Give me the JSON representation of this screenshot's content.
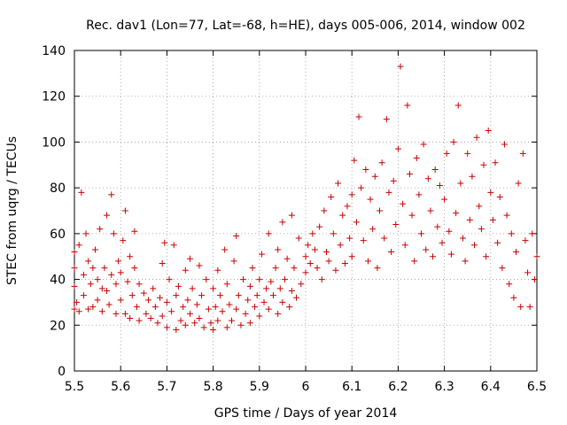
{
  "chart_data": {
    "type": "scatter",
    "title": "Rec. dav1 (Lon=77, Lat=-68, h=HE), days 005-006, 2014, window 002",
    "xlabel": "GPS time / Days of year 2014",
    "ylabel": "STEC from uqrg / TECUs",
    "xlim": [
      5.5,
      6.5
    ],
    "ylim": [
      0,
      140
    ],
    "x_ticks": [
      "5.5",
      "5.6",
      "5.7",
      "5.8",
      "5.9",
      "6",
      "6.1",
      "6.2",
      "6.3",
      "6.4",
      "6.5"
    ],
    "y_ticks": [
      "0",
      "20",
      "40",
      "60",
      "80",
      "100",
      "120",
      "140"
    ],
    "marker": "plus",
    "colors": {
      "points": "#cc0000",
      "axes": "#000000",
      "background": "#ffffff"
    },
    "series": [
      {
        "name": "STEC",
        "points": [
          [
            5.5,
            27
          ],
          [
            5.5,
            37
          ],
          [
            5.5,
            45
          ],
          [
            5.5,
            52
          ],
          [
            5.505,
            30
          ],
          [
            5.51,
            55
          ],
          [
            5.51,
            26
          ],
          [
            5.515,
            78
          ],
          [
            5.52,
            42
          ],
          [
            5.52,
            33
          ],
          [
            5.525,
            60
          ],
          [
            5.53,
            27
          ],
          [
            5.53,
            48
          ],
          [
            5.535,
            38
          ],
          [
            5.54,
            45
          ],
          [
            5.54,
            28
          ],
          [
            5.545,
            53
          ],
          [
            5.55,
            40
          ],
          [
            5.55,
            31
          ],
          [
            5.555,
            62
          ],
          [
            5.56,
            26
          ],
          [
            5.56,
            36
          ],
          [
            5.565,
            45
          ],
          [
            5.57,
            68
          ],
          [
            5.57,
            35
          ],
          [
            5.575,
            29
          ],
          [
            5.58,
            77
          ],
          [
            5.58,
            42
          ],
          [
            5.585,
            60
          ],
          [
            5.59,
            38
          ],
          [
            5.59,
            25
          ],
          [
            5.595,
            48
          ],
          [
            5.6,
            43
          ],
          [
            5.6,
            31
          ],
          [
            5.605,
            57
          ],
          [
            5.61,
            70
          ],
          [
            5.61,
            25
          ],
          [
            5.615,
            39
          ],
          [
            5.62,
            50
          ],
          [
            5.62,
            23
          ],
          [
            5.625,
            33
          ],
          [
            5.63,
            61
          ],
          [
            5.63,
            45
          ],
          [
            5.635,
            28
          ],
          [
            5.64,
            22
          ],
          [
            5.64,
            38
          ],
          [
            5.65,
            34
          ],
          [
            5.655,
            25
          ],
          [
            5.66,
            31
          ],
          [
            5.665,
            23
          ],
          [
            5.67,
            36
          ],
          [
            5.675,
            28
          ],
          [
            5.68,
            21
          ],
          [
            5.685,
            32
          ],
          [
            5.69,
            47
          ],
          [
            5.69,
            24
          ],
          [
            5.695,
            56
          ],
          [
            5.7,
            30
          ],
          [
            5.7,
            19
          ],
          [
            5.705,
            40
          ],
          [
            5.71,
            26
          ],
          [
            5.715,
            55
          ],
          [
            5.72,
            33
          ],
          [
            5.72,
            18
          ],
          [
            5.725,
            37
          ],
          [
            5.73,
            22
          ],
          [
            5.735,
            28
          ],
          [
            5.74,
            44
          ],
          [
            5.74,
            20
          ],
          [
            5.745,
            31
          ],
          [
            5.75,
            49
          ],
          [
            5.75,
            25
          ],
          [
            5.755,
            36
          ],
          [
            5.76,
            21
          ],
          [
            5.765,
            29
          ],
          [
            5.77,
            46
          ],
          [
            5.77,
            23
          ],
          [
            5.775,
            33
          ],
          [
            5.78,
            19
          ],
          [
            5.785,
            40
          ],
          [
            5.79,
            27
          ],
          [
            5.795,
            21
          ],
          [
            5.8,
            36
          ],
          [
            5.8,
            18
          ],
          [
            5.805,
            28
          ],
          [
            5.81,
            44
          ],
          [
            5.81,
            22
          ],
          [
            5.815,
            33
          ],
          [
            5.82,
            26
          ],
          [
            5.825,
            53
          ],
          [
            5.83,
            19
          ],
          [
            5.83,
            38
          ],
          [
            5.835,
            29
          ],
          [
            5.84,
            22
          ],
          [
            5.845,
            48
          ],
          [
            5.85,
            27
          ],
          [
            5.85,
            59
          ],
          [
            5.855,
            33
          ],
          [
            5.86,
            20
          ],
          [
            5.865,
            40
          ],
          [
            5.87,
            25
          ],
          [
            5.875,
            31
          ],
          [
            5.88,
            37
          ],
          [
            5.88,
            21
          ],
          [
            5.885,
            45
          ],
          [
            5.89,
            28
          ],
          [
            5.895,
            33
          ],
          [
            5.9,
            40
          ],
          [
            5.9,
            24
          ],
          [
            5.905,
            51
          ],
          [
            5.91,
            30
          ],
          [
            5.915,
            36
          ],
          [
            5.92,
            27
          ],
          [
            5.92,
            60
          ],
          [
            5.925,
            39
          ],
          [
            5.93,
            33
          ],
          [
            5.935,
            45
          ],
          [
            5.94,
            25
          ],
          [
            5.94,
            53
          ],
          [
            5.945,
            36
          ],
          [
            5.95,
            65
          ],
          [
            5.95,
            30
          ],
          [
            5.955,
            40
          ],
          [
            5.96,
            49
          ],
          [
            5.965,
            28
          ],
          [
            5.97,
            35
          ],
          [
            5.97,
            68
          ],
          [
            5.975,
            45
          ],
          [
            5.98,
            32
          ],
          [
            5.985,
            58
          ],
          [
            5.99,
            38
          ],
          [
            6.0,
            50
          ],
          [
            6.0,
            43
          ],
          [
            6.005,
            55
          ],
          [
            6.01,
            47
          ],
          [
            6.015,
            60
          ],
          [
            6.02,
            53
          ],
          [
            6.025,
            45
          ],
          [
            6.03,
            63
          ],
          [
            6.035,
            40
          ],
          [
            6.04,
            70
          ],
          [
            6.045,
            52
          ],
          [
            6.05,
            48
          ],
          [
            6.055,
            76
          ],
          [
            6.06,
            60
          ],
          [
            6.065,
            44
          ],
          [
            6.07,
            82
          ],
          [
            6.075,
            55
          ],
          [
            6.08,
            68
          ],
          [
            6.085,
            47
          ],
          [
            6.09,
            72
          ],
          [
            6.095,
            58
          ],
          [
            6.1,
            77
          ],
          [
            6.1,
            50
          ],
          [
            6.105,
            92
          ],
          [
            6.11,
            65
          ],
          [
            6.115,
            111
          ],
          [
            6.12,
            80
          ],
          [
            6.125,
            57
          ],
          [
            6.13,
            88
          ],
          [
            6.135,
            48
          ],
          [
            6.14,
            75
          ],
          [
            6.145,
            62
          ],
          [
            6.15,
            85
          ],
          [
            6.155,
            45
          ],
          [
            6.16,
            70
          ],
          [
            6.165,
            91
          ],
          [
            6.17,
            58
          ],
          [
            6.175,
            110
          ],
          [
            6.18,
            78
          ],
          [
            6.185,
            52
          ],
          [
            6.19,
            83
          ],
          [
            6.195,
            64
          ],
          [
            6.2,
            97
          ],
          [
            6.205,
            133
          ],
          [
            6.21,
            73
          ],
          [
            6.215,
            55
          ],
          [
            6.22,
            116
          ],
          [
            6.225,
            86
          ],
          [
            6.23,
            68
          ],
          [
            6.235,
            48
          ],
          [
            6.24,
            93
          ],
          [
            6.245,
            77
          ],
          [
            6.25,
            60
          ],
          [
            6.255,
            99
          ],
          [
            6.26,
            53
          ],
          [
            6.265,
            84
          ],
          [
            6.27,
            70
          ],
          [
            6.275,
            50
          ],
          [
            6.28,
            88
          ],
          [
            6.285,
            63
          ],
          [
            6.29,
            81
          ],
          [
            6.295,
            56
          ],
          [
            6.3,
            75
          ],
          [
            6.305,
            95
          ],
          [
            6.31,
            61
          ],
          [
            6.315,
            51
          ],
          [
            6.32,
            100
          ],
          [
            6.325,
            69
          ],
          [
            6.33,
            116
          ],
          [
            6.335,
            82
          ],
          [
            6.34,
            58
          ],
          [
            6.345,
            48
          ],
          [
            6.35,
            95
          ],
          [
            6.355,
            66
          ],
          [
            6.36,
            85
          ],
          [
            6.365,
            55
          ],
          [
            6.37,
            102
          ],
          [
            6.375,
            72
          ],
          [
            6.38,
            62
          ],
          [
            6.385,
            90
          ],
          [
            6.39,
            50
          ],
          [
            6.395,
            105
          ],
          [
            6.4,
            78
          ],
          [
            6.405,
            66
          ],
          [
            6.41,
            91
          ],
          [
            6.415,
            56
          ],
          [
            6.42,
            76
          ],
          [
            6.425,
            45
          ],
          [
            6.43,
            99
          ],
          [
            6.435,
            68
          ],
          [
            6.44,
            38
          ],
          [
            6.445,
            60
          ],
          [
            6.45,
            32
          ],
          [
            6.455,
            52
          ],
          [
            6.46,
            82
          ],
          [
            6.465,
            28
          ],
          [
            6.47,
            95
          ],
          [
            6.475,
            57
          ],
          [
            6.48,
            43
          ],
          [
            6.485,
            28
          ],
          [
            6.49,
            60
          ],
          [
            6.495,
            40
          ],
          [
            6.5,
            50
          ]
        ]
      }
    ]
  }
}
